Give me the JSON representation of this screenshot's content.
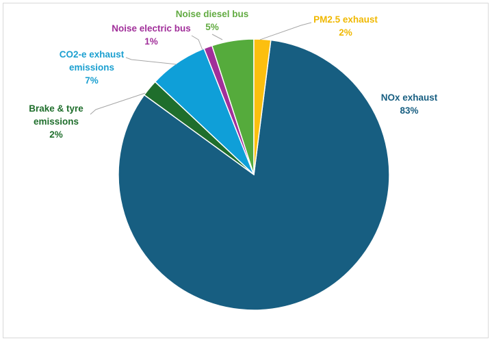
{
  "chart_data": {
    "type": "pie",
    "title": "",
    "slices": [
      {
        "label": "NOx exhaust",
        "value": 83,
        "display": "83%",
        "color": "#175e81"
      },
      {
        "label": "Brake & tyre emissions",
        "value": 2,
        "display": "2%",
        "color": "#1f6e2c"
      },
      {
        "label": "CO2-e exhaust emissions",
        "value": 7,
        "display": "7%",
        "color": "#0f9fd8"
      },
      {
        "label": "Noise electric bus",
        "value": 1,
        "display": "1%",
        "color": "#a12f9a"
      },
      {
        "label": "Noise diesel bus",
        "value": 5,
        "display": "5%",
        "color": "#55ab3c"
      },
      {
        "label": "PM2.5 exhaust",
        "value": 2,
        "display": "2%",
        "color": "#fcbf0f"
      }
    ],
    "label_colors": {
      "NOx exhaust": "#175e81",
      "Brake & tyre emissions": "#1f6e2c",
      "CO2-e exhaust emissions": "#1a9fd0",
      "Noise electric bus": "#a12f9a",
      "Noise diesel bus": "#62ab42",
      "PM2.5 exhaust": "#f0b800"
    },
    "legend": "none"
  }
}
